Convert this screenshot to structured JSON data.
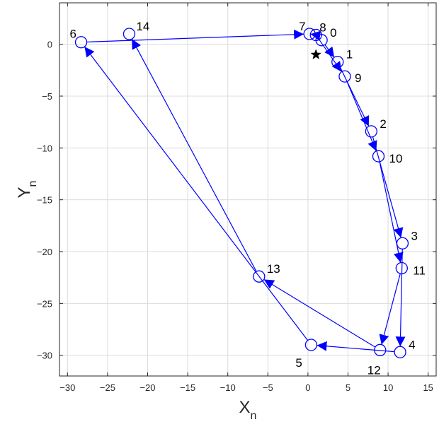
{
  "chart_data": {
    "type": "line",
    "title": "",
    "xlabel": "X",
    "xlabel_subscript": "n",
    "ylabel": "Y",
    "ylabel_subscript": "n",
    "xlim": [
      -31,
      16
    ],
    "ylim": [
      -32,
      4
    ],
    "xticks": [
      -30,
      -25,
      -20,
      -15,
      -10,
      -5,
      0,
      5,
      10,
      15
    ],
    "yticks": [
      0,
      -5,
      -10,
      -15,
      -20,
      -25,
      -30
    ],
    "grid": true,
    "colors": {
      "path": "#0000ff",
      "grid": "#dcdcdc",
      "axes": "#262626",
      "star": "#000000"
    },
    "points": [
      {
        "label": "0",
        "x": 1.7,
        "y": 0.4
      },
      {
        "label": "1",
        "x": 3.7,
        "y": -1.7
      },
      {
        "label": "2",
        "x": 7.9,
        "y": -8.4
      },
      {
        "label": "3",
        "x": 11.8,
        "y": -19.2
      },
      {
        "label": "4",
        "x": 11.5,
        "y": -29.7
      },
      {
        "label": "5",
        "x": 0.4,
        "y": -29.0
      },
      {
        "label": "6",
        "x": -28.3,
        "y": 0.2
      },
      {
        "label": "7",
        "x": 0.2,
        "y": 1.0
      },
      {
        "label": "8",
        "x": 1.0,
        "y": 0.9
      },
      {
        "label": "9",
        "x": 4.6,
        "y": -3.1
      },
      {
        "label": "10",
        "x": 8.8,
        "y": -10.8
      },
      {
        "label": "11",
        "x": 11.7,
        "y": -21.6
      },
      {
        "label": "12",
        "x": 9.0,
        "y": -29.5
      },
      {
        "label": "13",
        "x": -6.1,
        "y": -22.4
      },
      {
        "label": "14",
        "x": -22.3,
        "y": 1.0
      }
    ],
    "star": {
      "x": 1.0,
      "y": -1.0
    }
  }
}
